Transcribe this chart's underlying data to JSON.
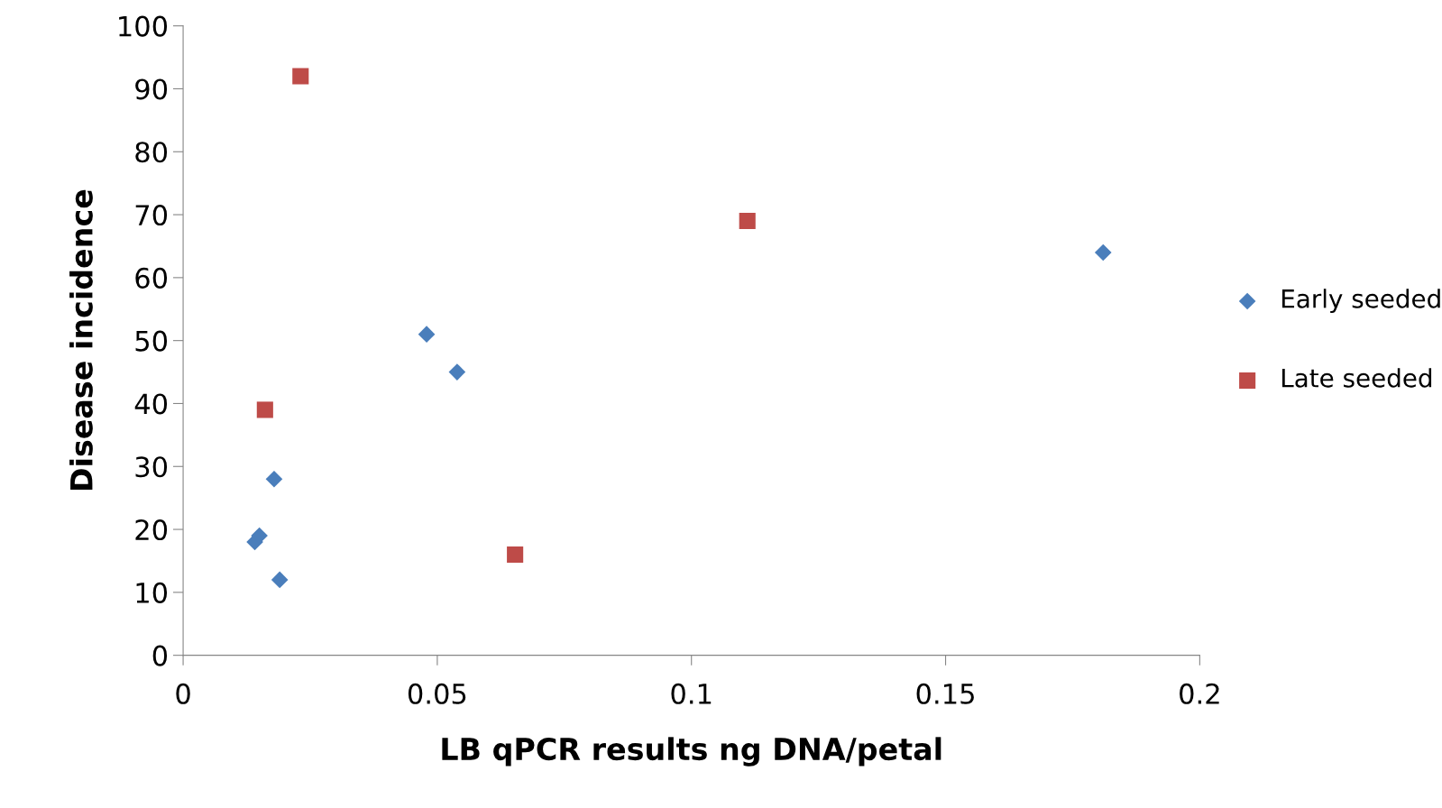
{
  "chart_data": {
    "type": "scatter",
    "xlabel": "LB qPCR results ng DNA/petal",
    "ylabel": "Disease incidence",
    "xlim": [
      0,
      0.2
    ],
    "xticks": [
      0,
      0.05,
      0.1,
      0.15,
      0.2
    ],
    "ylim": [
      0,
      100
    ],
    "yticks": [
      0,
      10,
      20,
      30,
      40,
      50,
      60,
      70,
      80,
      90,
      100
    ],
    "grid": false,
    "legend": "right",
    "series": [
      {
        "name": "Early seeded",
        "color": "#4a7ebb",
        "marker": "diamond",
        "x": [
          0.0141,
          0.015,
          0.0179,
          0.019,
          0.0479,
          0.0539,
          0.181
        ],
        "values": [
          18,
          19,
          28,
          12,
          51,
          45,
          64
        ]
      },
      {
        "name": "Late seeded",
        "color": "#be4b48",
        "marker": "square",
        "x": [
          0.0231,
          0.0161,
          0.0653,
          0.111
        ],
        "values": [
          92,
          39,
          16,
          69
        ]
      }
    ]
  }
}
